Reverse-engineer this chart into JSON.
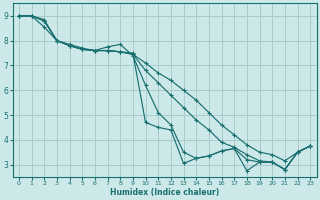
{
  "bg_color": "#cce8e8",
  "grid_color": "#aacccc",
  "line_color": "#1a7070",
  "xlabel": "Humidex (Indice chaleur)",
  "xlim": [
    -0.5,
    23.5
  ],
  "ylim": [
    2.5,
    9.5
  ],
  "xticks": [
    0,
    1,
    2,
    3,
    4,
    5,
    6,
    7,
    8,
    9,
    10,
    11,
    12,
    13,
    14,
    15,
    16,
    17,
    18,
    19,
    20,
    21,
    22,
    23
  ],
  "yticks": [
    3,
    4,
    5,
    6,
    7,
    8,
    9
  ],
  "series": [
    {
      "x": [
        0,
        1,
        2,
        3,
        4,
        5,
        6,
        7,
        8,
        9,
        10,
        11,
        12,
        13,
        14,
        15,
        16,
        17,
        18,
        19,
        20,
        21,
        22,
        23
      ],
      "y": [
        9,
        9,
        8.8,
        8.0,
        7.8,
        7.65,
        7.6,
        7.6,
        7.55,
        7.45,
        7.1,
        6.7,
        6.4,
        6.0,
        5.6,
        5.1,
        4.6,
        4.2,
        3.8,
        3.5,
        3.4,
        3.15,
        3.5,
        3.75
      ]
    },
    {
      "x": [
        0,
        1,
        2,
        3,
        4,
        5,
        6,
        7,
        8,
        9,
        10,
        11,
        12,
        13,
        14,
        15,
        16,
        17,
        18,
        19,
        20,
        21,
        22,
        23
      ],
      "y": [
        9,
        9,
        8.8,
        8.0,
        7.8,
        7.65,
        7.6,
        7.6,
        7.55,
        7.45,
        6.8,
        6.3,
        5.8,
        5.3,
        4.8,
        4.4,
        3.9,
        3.7,
        3.4,
        3.15,
        3.1,
        2.8,
        3.5,
        3.75
      ]
    },
    {
      "x": [
        0,
        1,
        2,
        3,
        4,
        5,
        6,
        7,
        8,
        9,
        10,
        11,
        12,
        13,
        14,
        15,
        16,
        17,
        18,
        19,
        20,
        21,
        22,
        23
      ],
      "y": [
        9,
        9,
        8.85,
        8.0,
        7.8,
        7.65,
        7.6,
        7.6,
        7.55,
        7.5,
        4.7,
        4.5,
        4.4,
        3.05,
        3.25,
        3.35,
        3.55,
        3.65,
        3.2,
        3.1,
        3.1,
        2.8,
        3.5,
        3.75
      ]
    },
    {
      "x": [
        0,
        1,
        2,
        3,
        4,
        5,
        6,
        7,
        8,
        9,
        10,
        11,
        12,
        13,
        14,
        15,
        16,
        17,
        18,
        19,
        20,
        21,
        22,
        23
      ],
      "y": [
        9,
        9,
        8.55,
        8.0,
        7.85,
        7.7,
        7.6,
        7.75,
        7.85,
        7.4,
        6.2,
        5.1,
        4.6,
        3.5,
        3.25,
        3.35,
        3.55,
        3.65,
        2.75,
        3.1,
        3.1,
        2.8,
        3.5,
        3.75
      ]
    }
  ]
}
